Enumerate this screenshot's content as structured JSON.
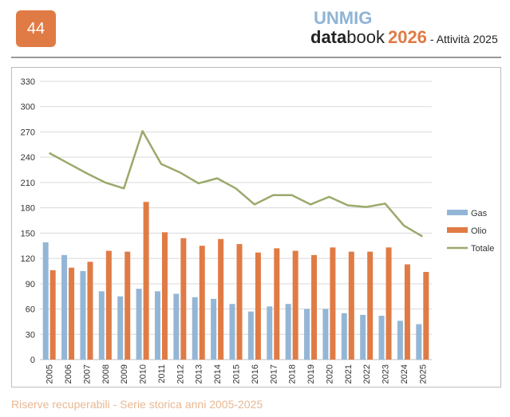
{
  "page": {
    "number": "44"
  },
  "brand": {
    "top": "UNMIG",
    "data": "data",
    "book": "book",
    "year": "2026",
    "subtitle": "- Attività 2025"
  },
  "caption": "Riserve recuperabili - Serie storica anni 2005-2025",
  "colors": {
    "gas": "#94b6d6",
    "olio": "#e07b45",
    "totale": "#9aa96b",
    "grid": "#d9d9d9"
  },
  "chart_data": {
    "type": "bar",
    "categories": [
      "2005",
      "2006",
      "2007",
      "2008",
      "2009",
      "2010",
      "2011",
      "2012",
      "2013",
      "2014",
      "2015",
      "2016",
      "2017",
      "2018",
      "2019",
      "2020",
      "2021",
      "2022",
      "2023",
      "2024",
      "2025"
    ],
    "series": [
      {
        "name": "Gas",
        "kind": "bar",
        "values": [
          139,
          124,
          105,
          81,
          75,
          84,
          81,
          78,
          74,
          72,
          66,
          57,
          63,
          66,
          60,
          60,
          55,
          53,
          52,
          46,
          42
        ]
      },
      {
        "name": "Olio",
        "kind": "bar",
        "values": [
          106,
          109,
          116,
          129,
          128,
          187,
          151,
          144,
          135,
          143,
          137,
          127,
          132,
          129,
          124,
          133,
          128,
          128,
          133,
          113,
          104
        ]
      },
      {
        "name": "Totale",
        "kind": "line",
        "values": [
          245,
          233,
          221,
          210,
          203,
          271,
          232,
          222,
          209,
          215,
          203,
          184,
          195,
          195,
          184,
          193,
          183,
          181,
          185,
          159,
          146
        ]
      }
    ],
    "ylim": [
      0,
      330
    ],
    "yticks": [
      0,
      30,
      60,
      90,
      120,
      150,
      180,
      210,
      240,
      270,
      300,
      330
    ],
    "grid": true,
    "legend": "right"
  }
}
